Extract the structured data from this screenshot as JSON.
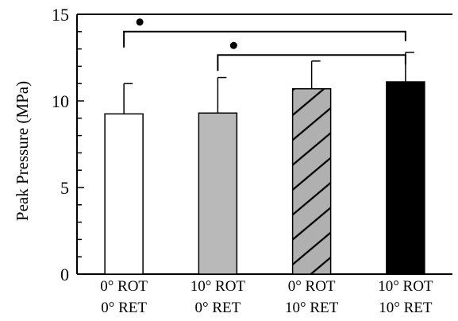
{
  "chart_data": {
    "type": "bar",
    "ylabel": "Peak Pressure (MPa)",
    "ylim": [
      0,
      15
    ],
    "yticks": [
      0,
      5,
      10,
      15
    ],
    "grid": false,
    "categories": [
      [
        "0° ROT",
        "0° RET"
      ],
      [
        "10° ROT",
        "0° RET"
      ],
      [
        "0° ROT",
        "10° RET"
      ],
      [
        "10° ROT",
        "10° RET"
      ]
    ],
    "values": [
      9.25,
      9.3,
      10.7,
      11.1
    ],
    "errors": [
      1.75,
      2.05,
      1.6,
      1.7
    ],
    "bar_styles": [
      {
        "fill": "#ffffff",
        "pattern": "none"
      },
      {
        "fill": "#b9b9b9",
        "pattern": "none"
      },
      {
        "fill": "#b0b0b0",
        "pattern": "diagonal-hatch"
      },
      {
        "fill": "#000000",
        "pattern": "none"
      }
    ],
    "significance": [
      {
        "from": 0,
        "to": 3,
        "bracket_level": 14.0,
        "marker": "•"
      },
      {
        "from": 1,
        "to": 3,
        "bracket_level": 12.65,
        "marker": "•"
      }
    ]
  }
}
